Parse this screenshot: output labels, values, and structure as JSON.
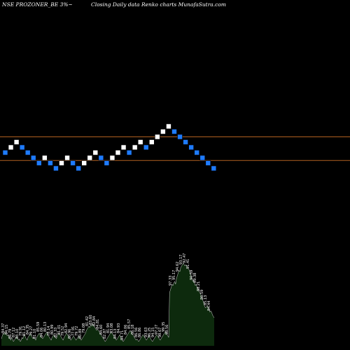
{
  "header": {
    "title": "NSE PROZONER_BE 3%~",
    "subtitle": "Closing Daily data  Renko  charts MunafaSutra.com"
  },
  "colors": {
    "background": "#000000",
    "up_brick": "#ffffff",
    "down_brick": "#1e7bff",
    "level_line": "#b06020",
    "volume_fill": "#0d2a0d",
    "volume_line": "#ffffff"
  },
  "chart_data": {
    "type": "renko",
    "brick_size_note": "3%",
    "bricks": [
      {
        "level": 0,
        "dir": "down"
      },
      {
        "level": 1,
        "dir": "up"
      },
      {
        "level": 2,
        "dir": "up"
      },
      {
        "level": 1,
        "dir": "down"
      },
      {
        "level": 0,
        "dir": "down"
      },
      {
        "level": -1,
        "dir": "down"
      },
      {
        "level": -2,
        "dir": "down"
      },
      {
        "level": -1,
        "dir": "up"
      },
      {
        "level": -2,
        "dir": "down"
      },
      {
        "level": -3,
        "dir": "down"
      },
      {
        "level": -2,
        "dir": "up"
      },
      {
        "level": -1,
        "dir": "up"
      },
      {
        "level": -2,
        "dir": "down"
      },
      {
        "level": -3,
        "dir": "down"
      },
      {
        "level": -2,
        "dir": "up"
      },
      {
        "level": -1,
        "dir": "up"
      },
      {
        "level": 0,
        "dir": "up"
      },
      {
        "level": -1,
        "dir": "down"
      },
      {
        "level": -2,
        "dir": "down"
      },
      {
        "level": -1,
        "dir": "up"
      },
      {
        "level": 0,
        "dir": "up"
      },
      {
        "level": 1,
        "dir": "up"
      },
      {
        "level": 0,
        "dir": "down"
      },
      {
        "level": 1,
        "dir": "up"
      },
      {
        "level": 2,
        "dir": "up"
      },
      {
        "level": 1,
        "dir": "down"
      },
      {
        "level": 2,
        "dir": "up"
      },
      {
        "level": 3,
        "dir": "up"
      },
      {
        "level": 4,
        "dir": "up"
      },
      {
        "level": 5,
        "dir": "up"
      },
      {
        "level": 4,
        "dir": "down"
      },
      {
        "level": 3,
        "dir": "down"
      },
      {
        "level": 2,
        "dir": "down"
      },
      {
        "level": 1,
        "dir": "down"
      },
      {
        "level": 0,
        "dir": "down"
      },
      {
        "level": -1,
        "dir": "down"
      },
      {
        "level": -2,
        "dir": "down"
      },
      {
        "level": -3,
        "dir": "down"
      }
    ],
    "reference_levels": [
      3,
      -1.5
    ],
    "volume_labels": [
      "84.37",
      "94.15",
      "86.79",
      "87.12",
      "83.10",
      "79.91",
      "81.12",
      "84.35",
      "79.27",
      "81.10",
      "85.59",
      "84.06",
      "80.13",
      "78.14",
      "80.99",
      "82.33",
      "81.01",
      "79.52",
      "82.94",
      "80.96",
      "77.91",
      "79.72",
      "80.89",
      "79.08",
      "81.42",
      "83.60",
      "82.84",
      "84.81",
      "84.60",
      "82.87",
      "81.94",
      "83.08",
      "84.13",
      "84.93",
      "84.71",
      "84.06",
      "85.57",
      "86.18",
      "86.56",
      "86.86"
    ],
    "volume_top_labels": [
      "93.63",
      "96.25",
      "94.15",
      "97.27",
      "98.67",
      "99.35",
      "98.56",
      "97.33",
      "95.17",
      "94.62",
      "93.17",
      "92.47",
      "91.41",
      "90.59",
      "89.38",
      "88.21",
      "86.59",
      "85.13",
      "84.44"
    ],
    "volume": [
      5,
      7,
      9,
      8,
      10,
      9,
      8,
      7,
      8,
      6,
      5,
      4,
      6,
      5,
      3,
      4,
      5,
      6,
      7,
      5,
      4,
      5,
      3,
      4,
      6,
      5,
      7,
      8,
      6,
      5,
      4,
      6,
      7,
      8,
      9,
      7,
      6,
      5,
      6,
      5,
      4,
      6,
      7,
      8,
      9,
      8,
      7,
      6,
      5,
      6,
      7,
      8,
      9,
      10,
      8,
      7,
      6,
      5,
      4,
      6,
      7,
      8,
      7,
      6,
      5,
      7,
      8,
      9,
      8,
      7,
      6,
      5,
      4,
      6,
      7,
      8,
      9,
      8,
      7,
      6,
      5,
      4,
      5,
      6,
      7,
      6,
      5,
      4,
      5,
      6,
      7,
      6,
      5,
      4,
      5,
      6,
      7,
      8,
      9,
      11,
      12,
      13,
      14,
      13,
      15,
      14,
      16,
      15,
      14,
      13,
      12,
      11,
      12,
      11,
      10,
      9,
      8,
      7,
      6,
      5,
      4,
      3,
      4,
      5,
      6,
      7,
      8,
      9,
      10,
      9,
      8,
      7,
      6,
      5,
      4,
      5,
      6,
      7,
      8,
      6,
      5,
      4,
      3,
      4,
      5,
      6,
      7,
      8,
      9,
      10,
      11,
      10,
      9,
      8,
      7,
      6,
      5,
      4,
      5,
      4,
      3,
      4,
      5,
      6,
      7,
      8,
      7,
      6,
      5,
      4,
      5,
      6,
      7,
      6,
      5,
      4,
      3,
      4,
      5,
      6,
      7,
      8,
      7,
      6,
      5,
      4,
      5,
      6,
      7,
      8,
      9,
      10,
      9,
      8,
      7,
      6,
      38,
      40,
      42,
      44,
      43,
      45,
      46,
      44,
      48,
      50,
      52,
      54,
      53,
      56,
      57,
      58,
      59,
      58,
      57,
      58,
      57,
      56,
      55,
      54,
      52,
      50,
      48,
      46,
      47,
      45,
      43,
      44,
      42,
      41,
      40,
      38,
      37,
      36,
      34,
      32,
      30,
      28,
      27,
      28,
      29,
      27,
      26,
      24,
      25,
      24,
      22,
      21,
      20
    ]
  }
}
